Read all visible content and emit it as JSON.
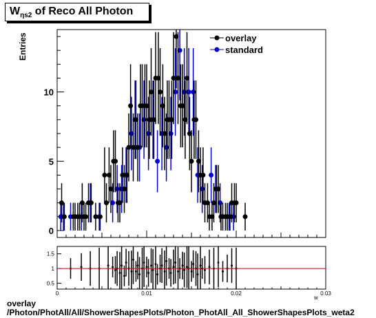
{
  "title": {
    "main": "W",
    "sub": "ηs2",
    "rest": " of Reco All Photon"
  },
  "footer": {
    "line1": "overlay",
    "line2": "/Photon/PhotAll/All/ShowerShapesPlots/Photon_PhotAll_All_ShowerShapesPlots_weta2"
  },
  "chart_data": {
    "type": "scatter",
    "ylabel": "Entries",
    "xlabel": "w",
    "xlim": [
      0,
      0.03
    ],
    "ylim": [
      -0.5,
      14.5
    ],
    "x_ticks": [
      "0",
      "0.01",
      "0.02",
      "0.03"
    ],
    "y_ticks": [
      "0",
      "5",
      "10"
    ],
    "legend": {
      "position": "top-right",
      "entries": [
        "overlay",
        "standard"
      ]
    },
    "colors": {
      "overlay": "#000000",
      "standard": "#0000cc",
      "ratio_line": "#cc0000"
    },
    "series": [
      {
        "name": "overlay",
        "points": [
          [
            0.0005,
            2
          ],
          [
            0.0008,
            1
          ],
          [
            0.0018,
            1
          ],
          [
            0.002,
            1
          ],
          [
            0.0023,
            1
          ],
          [
            0.0025,
            1
          ],
          [
            0.0028,
            2
          ],
          [
            0.003,
            1
          ],
          [
            0.0032,
            1
          ],
          [
            0.0035,
            2
          ],
          [
            0.0038,
            2
          ],
          [
            0.0043,
            1
          ],
          [
            0.0048,
            1
          ],
          [
            0.0053,
            4
          ],
          [
            0.0055,
            2
          ],
          [
            0.0058,
            4
          ],
          [
            0.006,
            3
          ],
          [
            0.0063,
            5
          ],
          [
            0.0065,
            5
          ],
          [
            0.0068,
            2
          ],
          [
            0.007,
            2
          ],
          [
            0.0073,
            4
          ],
          [
            0.0075,
            3
          ],
          [
            0.0078,
            4
          ],
          [
            0.008,
            6
          ],
          [
            0.0082,
            9
          ],
          [
            0.0085,
            6
          ],
          [
            0.0088,
            8
          ],
          [
            0.009,
            6
          ],
          [
            0.0093,
            9
          ],
          [
            0.0095,
            9
          ],
          [
            0.0098,
            9
          ],
          [
            0.01,
            9
          ],
          [
            0.0103,
            8
          ],
          [
            0.0105,
            10
          ],
          [
            0.0108,
            8
          ],
          [
            0.011,
            11
          ],
          [
            0.0113,
            11
          ],
          [
            0.0115,
            10
          ],
          [
            0.0118,
            9
          ],
          [
            0.012,
            7
          ],
          [
            0.0123,
            8
          ],
          [
            0.0125,
            8
          ],
          [
            0.0128,
            8
          ],
          [
            0.013,
            11
          ],
          [
            0.0133,
            14
          ],
          [
            0.0135,
            11
          ],
          [
            0.0138,
            9
          ],
          [
            0.014,
            9
          ],
          [
            0.0143,
            8
          ],
          [
            0.0145,
            11
          ],
          [
            0.0148,
            7
          ],
          [
            0.015,
            5
          ],
          [
            0.0153,
            8
          ],
          [
            0.0155,
            8
          ],
          [
            0.0158,
            5
          ],
          [
            0.016,
            4
          ],
          [
            0.0163,
            4
          ],
          [
            0.0165,
            2
          ],
          [
            0.0168,
            2
          ],
          [
            0.017,
            1
          ],
          [
            0.0173,
            1
          ],
          [
            0.0175,
            2
          ],
          [
            0.0178,
            3
          ],
          [
            0.018,
            3
          ],
          [
            0.0183,
            1
          ],
          [
            0.0185,
            1
          ],
          [
            0.0188,
            1
          ],
          [
            0.019,
            1
          ],
          [
            0.0193,
            1
          ],
          [
            0.0195,
            2
          ],
          [
            0.0198,
            2
          ],
          [
            0.02,
            2
          ],
          [
            0.021,
            1
          ]
        ]
      },
      {
        "name": "standard",
        "points": [
          [
            0.0004,
            1
          ],
          [
            0.0007,
            1
          ],
          [
            0.0015,
            1
          ],
          [
            0.0027,
            1
          ],
          [
            0.0037,
            2
          ],
          [
            0.0047,
            1
          ],
          [
            0.0062,
            2
          ],
          [
            0.0067,
            3
          ],
          [
            0.0072,
            3
          ],
          [
            0.0077,
            4
          ],
          [
            0.0083,
            7
          ],
          [
            0.0087,
            8
          ],
          [
            0.0092,
            6
          ],
          [
            0.0097,
            8
          ],
          [
            0.0102,
            7
          ],
          [
            0.0107,
            8
          ],
          [
            0.0112,
            5
          ],
          [
            0.0117,
            7
          ],
          [
            0.0122,
            6
          ],
          [
            0.0127,
            7
          ],
          [
            0.0132,
            10
          ],
          [
            0.0137,
            13
          ],
          [
            0.0142,
            10
          ],
          [
            0.0147,
            10
          ],
          [
            0.0152,
            10
          ],
          [
            0.0157,
            4
          ],
          [
            0.0162,
            3
          ],
          [
            0.0172,
            4
          ],
          [
            0.0177,
            3
          ],
          [
            0.0182,
            2
          ],
          [
            0.0192,
            1
          ],
          [
            0.0197,
            1
          ]
        ]
      }
    ],
    "ratio_panel": {
      "ylim": [
        0.3,
        1.75
      ],
      "y_ticks": [
        "0.5",
        "1",
        "1.5"
      ],
      "reference": 1,
      "points": [
        [
          0.0015,
          1
        ],
        [
          0.0027,
          1.05
        ],
        [
          0.0037,
          1
        ],
        [
          0.0047,
          1
        ],
        [
          0.0057,
          1.1
        ],
        [
          0.0062,
          1.05
        ],
        [
          0.0065,
          0.95
        ],
        [
          0.0067,
          1
        ],
        [
          0.007,
          0.85
        ],
        [
          0.0072,
          1.1
        ],
        [
          0.0075,
          0.75
        ],
        [
          0.0077,
          1.2
        ],
        [
          0.008,
          1
        ],
        [
          0.0083,
          0.9
        ],
        [
          0.0085,
          1.3
        ],
        [
          0.0088,
          0.9
        ],
        [
          0.009,
          1.1
        ],
        [
          0.0092,
          0.8
        ],
        [
          0.0095,
          1
        ],
        [
          0.0097,
          1.2
        ],
        [
          0.01,
          1.05
        ],
        [
          0.0102,
          0.85
        ],
        [
          0.0105,
          1.1
        ],
        [
          0.0107,
          0.95
        ],
        [
          0.011,
          1.15
        ],
        [
          0.0112,
          0.8
        ],
        [
          0.0115,
          1
        ],
        [
          0.0117,
          1.1
        ],
        [
          0.012,
          0.9
        ],
        [
          0.0122,
          1.25
        ],
        [
          0.0125,
          1
        ],
        [
          0.0127,
          0.85
        ],
        [
          0.013,
          1.05
        ],
        [
          0.0132,
          1.2
        ],
        [
          0.0135,
          0.9
        ],
        [
          0.0137,
          1
        ],
        [
          0.014,
          1.1
        ],
        [
          0.0142,
          0.95
        ],
        [
          0.0145,
          1.05
        ],
        [
          0.0147,
          1
        ],
        [
          0.015,
          0.9
        ],
        [
          0.0152,
          1.15
        ],
        [
          0.0155,
          1
        ],
        [
          0.0157,
          0.8
        ],
        [
          0.016,
          1.1
        ],
        [
          0.0162,
          1
        ],
        [
          0.0165,
          0.95
        ],
        [
          0.017,
          1.05
        ],
        [
          0.0175,
          1
        ],
        [
          0.018,
          1.2
        ],
        [
          0.0185,
          0.9
        ],
        [
          0.019,
          1
        ],
        [
          0.0195,
          1.1
        ],
        [
          0.02,
          1
        ]
      ]
    }
  }
}
